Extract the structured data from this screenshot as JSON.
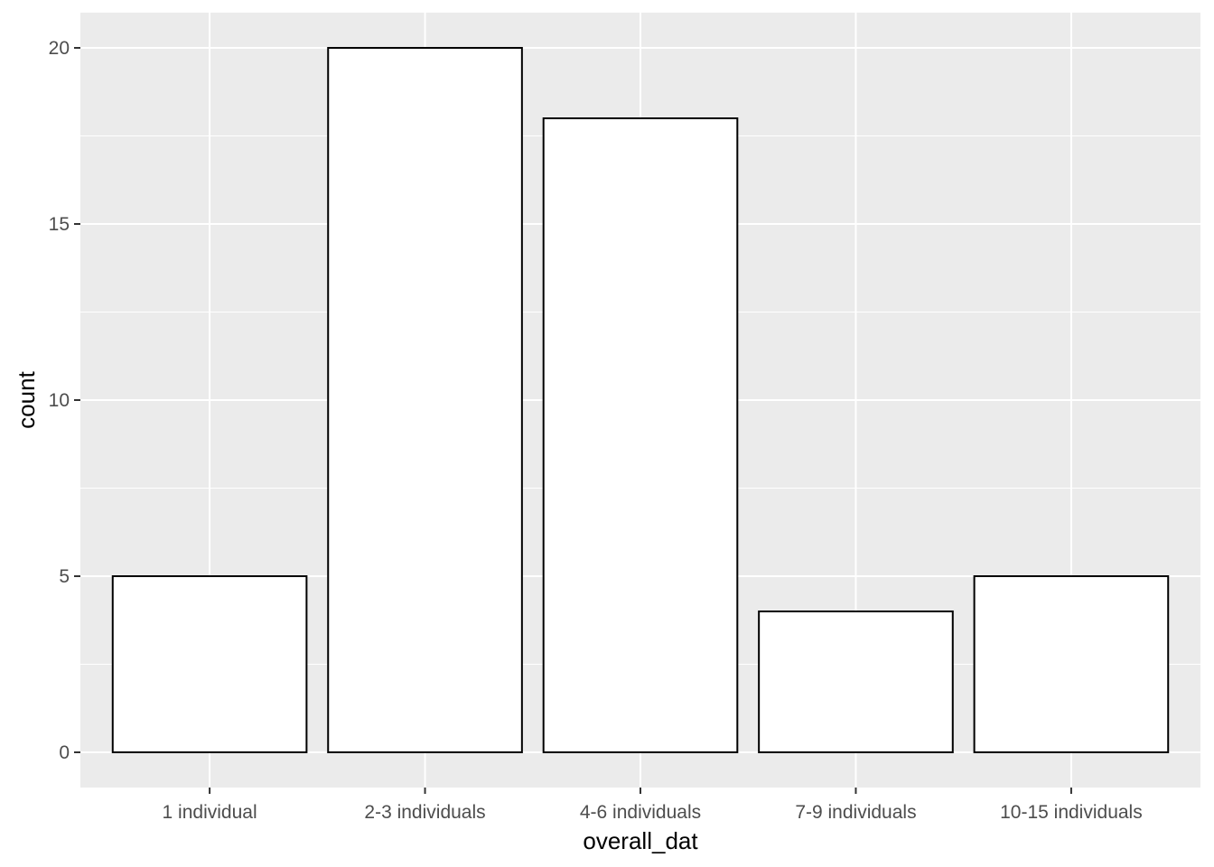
{
  "chart_data": {
    "type": "bar",
    "categories": [
      "1 individual",
      "2-3 individuals",
      "4-6 individuals",
      "7-9 individuals",
      "10-15 individuals"
    ],
    "values": [
      5,
      20,
      18,
      4,
      5
    ],
    "xlabel": "overall_dat",
    "ylabel": "count",
    "ylim": [
      -1,
      21
    ],
    "yticks": [
      0,
      5,
      10,
      15,
      20
    ],
    "grid": true,
    "legend": "none",
    "colors": {
      "panel": "#ebebeb",
      "grid_major": "#ffffff",
      "bar_fill": "#ffffff",
      "bar_stroke": "#000000",
      "tick": "#333333"
    }
  }
}
